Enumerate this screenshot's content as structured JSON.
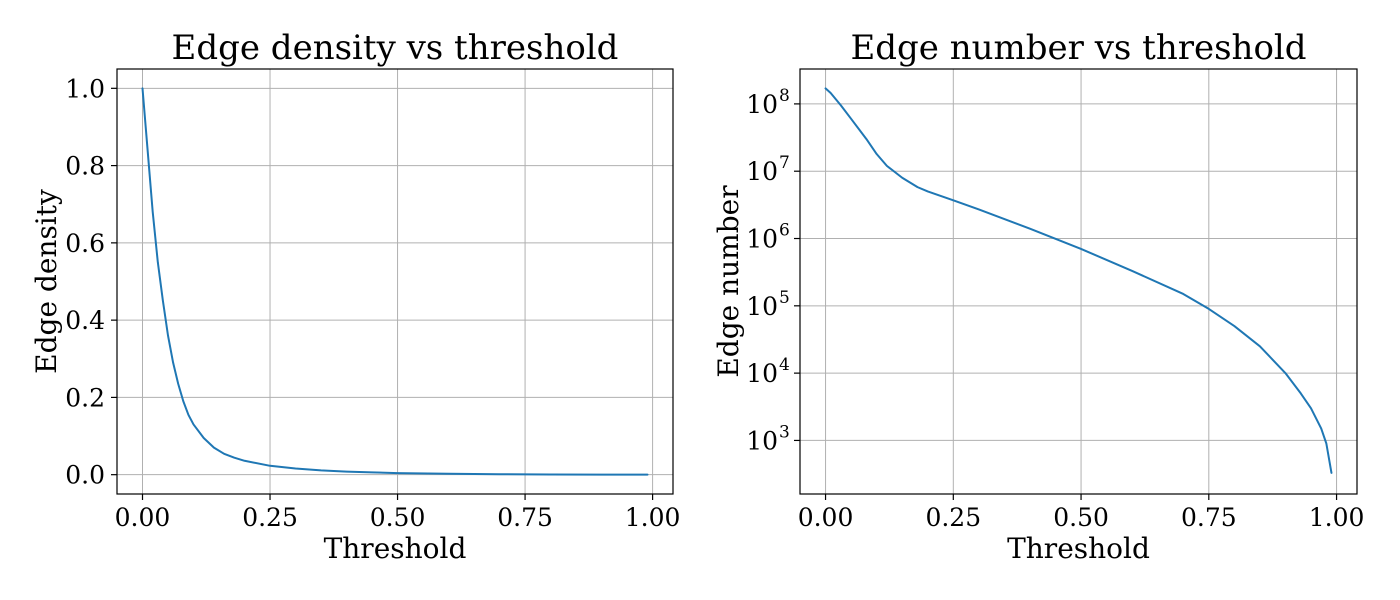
{
  "chart_data": [
    {
      "type": "line",
      "title": "Edge density vs threshold",
      "xlabel": "Threshold",
      "ylabel": "Edge density",
      "xscale": "linear",
      "yscale": "linear",
      "xlim": [
        -0.05,
        1.04
      ],
      "ylim": [
        -0.05,
        1.05
      ],
      "xticks": [
        0,
        0.25,
        0.5,
        0.75,
        1.0
      ],
      "xtick_labels": [
        "0.00",
        "0.25",
        "0.50",
        "0.75",
        "1.00"
      ],
      "yticks": [
        0,
        0.2,
        0.4,
        0.6,
        0.8,
        1.0
      ],
      "ytick_labels": [
        "0.0",
        "0.2",
        "0.4",
        "0.6",
        "0.8",
        "1.0"
      ],
      "grid": true,
      "color": "#1f77b4",
      "series": [
        {
          "x": [
            0.0,
            0.01,
            0.02,
            0.03,
            0.04,
            0.05,
            0.06,
            0.07,
            0.08,
            0.09,
            0.1,
            0.12,
            0.14,
            0.16,
            0.18,
            0.2,
            0.25,
            0.3,
            0.35,
            0.4,
            0.45,
            0.5,
            0.6,
            0.7,
            0.8,
            0.9,
            0.99
          ],
          "y": [
            1.0,
            0.84,
            0.68,
            0.55,
            0.45,
            0.36,
            0.29,
            0.235,
            0.19,
            0.155,
            0.13,
            0.095,
            0.07,
            0.054,
            0.044,
            0.036,
            0.023,
            0.016,
            0.011,
            0.008,
            0.006,
            0.004,
            0.0025,
            0.0012,
            0.0005,
            0.0001,
            0.0
          ]
        }
      ]
    },
    {
      "type": "line",
      "title": "Edge number vs threshold",
      "xlabel": "Threshold",
      "ylabel": "Edge number",
      "xscale": "linear",
      "yscale": "log",
      "xlim": [
        -0.05,
        1.04
      ],
      "ylim": [
        160,
        330000000
      ],
      "xticks": [
        0,
        0.25,
        0.5,
        0.75,
        1.0
      ],
      "xtick_labels": [
        "0.00",
        "0.25",
        "0.50",
        "0.75",
        "1.00"
      ],
      "yticks": [
        1000,
        10000,
        100000,
        1000000,
        10000000,
        100000000
      ],
      "ytick_exponents": [
        "3",
        "4",
        "5",
        "6",
        "7",
        "8"
      ],
      "ytick_base": "10",
      "grid": true,
      "color": "#1f77b4",
      "series": [
        {
          "x": [
            0.0,
            0.01,
            0.03,
            0.05,
            0.08,
            0.1,
            0.12,
            0.15,
            0.18,
            0.2,
            0.25,
            0.3,
            0.4,
            0.5,
            0.6,
            0.7,
            0.75,
            0.8,
            0.85,
            0.9,
            0.93,
            0.95,
            0.97,
            0.98,
            0.99
          ],
          "y": [
            170000000,
            145000000,
            95000000,
            60000000,
            30000000,
            18000000,
            12000000,
            8000000,
            5800000,
            5000000,
            3700000,
            2700000,
            1400000,
            700000,
            330000,
            150000,
            90000,
            50000,
            25000,
            10000,
            5000,
            3000,
            1500,
            900,
            330
          ]
        }
      ]
    }
  ]
}
